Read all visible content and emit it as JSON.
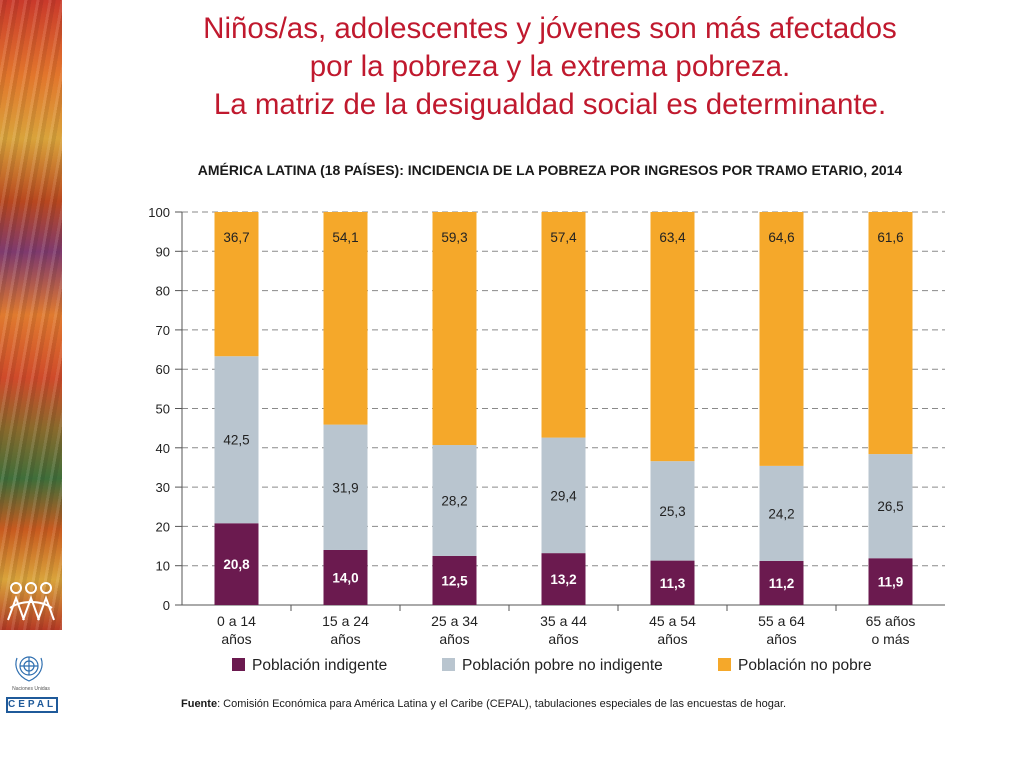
{
  "header": {
    "title_line1": "Niños/as, adolescentes y jóvenes son más afectados",
    "title_line2": "por la  pobreza y la extrema pobreza.",
    "title_line3": "La matriz de la desigualdad  social es determinante."
  },
  "logos": {
    "un_caption": "Naciones Unidas",
    "cepal": "CEPAL"
  },
  "chart_data": {
    "type": "bar",
    "stacked": true,
    "title": "AMÉRICA LATINA (18 PAÍSES): INCIDENCIA DE LA POBREZA POR INGRESOS POR TRAMO ETARIO, 2014",
    "categories": [
      [
        "0 a 14",
        "años"
      ],
      [
        "15 a 24",
        "años"
      ],
      [
        "25 a 34",
        "años"
      ],
      [
        "35 a 44",
        "años"
      ],
      [
        "45 a 54",
        "años"
      ],
      [
        "55 a 64",
        "años"
      ],
      [
        "65 años",
        "o más"
      ]
    ],
    "series": [
      {
        "name": "Población indigente",
        "color": "#6b1a4f",
        "labels": [
          "20,8",
          "14,0",
          "12,5",
          "13,2",
          "11,3",
          "11,2",
          "11,9"
        ],
        "values": [
          20.8,
          14.0,
          12.5,
          13.2,
          11.3,
          11.2,
          11.9
        ]
      },
      {
        "name": "Población pobre no indigente",
        "color": "#b9c5cf",
        "labels": [
          "42,5",
          "31,9",
          "28,2",
          "29,4",
          "25,3",
          "24,2",
          "26,5"
        ],
        "values": [
          42.5,
          31.9,
          28.2,
          29.4,
          25.3,
          24.2,
          26.5
        ]
      },
      {
        "name": "Población no pobre",
        "color": "#f5a82a",
        "labels": [
          "36,7",
          "54,1",
          "59,3",
          "57,4",
          "63,4",
          "64,6",
          "61,6"
        ],
        "values": [
          36.7,
          54.1,
          59.3,
          57.4,
          63.4,
          64.6,
          61.6
        ]
      }
    ],
    "yticks": [
      "0",
      "10",
      "20",
      "30",
      "40",
      "50",
      "60",
      "70",
      "80",
      "90",
      "100"
    ],
    "ylim": [
      0,
      100
    ],
    "grid": true,
    "legend_position": "bottom"
  },
  "source": {
    "label": "Fuente",
    "text": ": Comisión Económica para América Latina y el Caribe (CEPAL), tabulaciones especiales de las encuestas de hogar."
  }
}
